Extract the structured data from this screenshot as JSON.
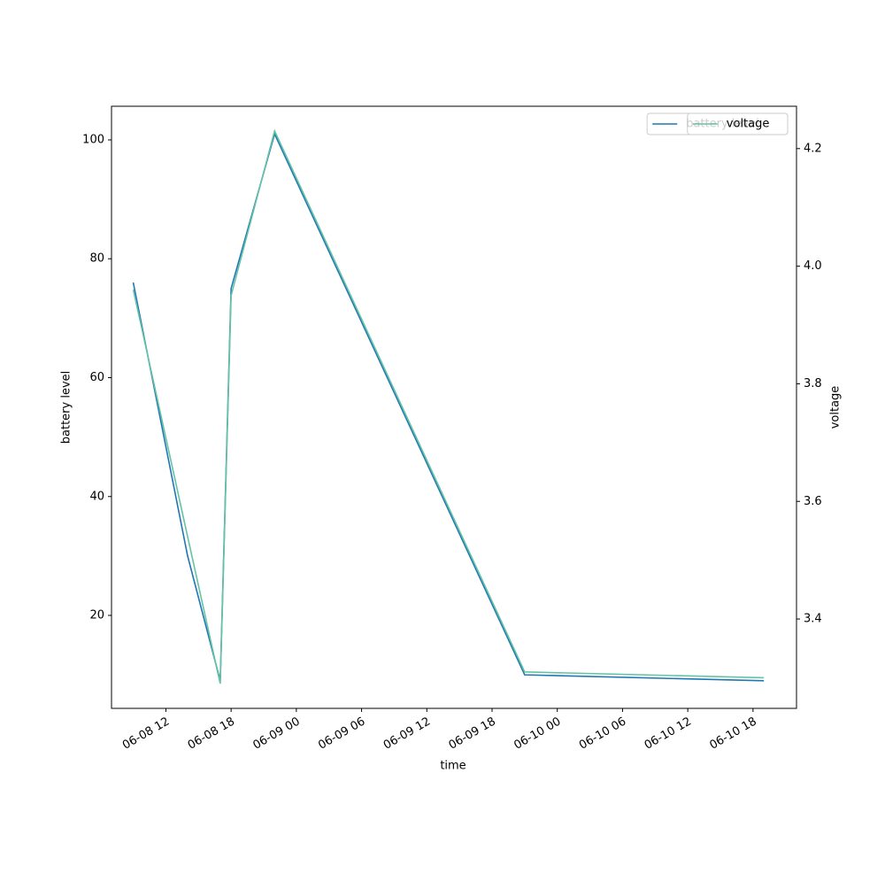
{
  "chart_data": {
    "type": "line",
    "x_label": "time",
    "y_label": "battery level",
    "y2_label": "voltage",
    "x": [
      "06-08 09",
      "06-08 14",
      "06-08 17",
      "06-08 18",
      "06-08 22",
      "06-09 21",
      "06-10 19"
    ],
    "series": [
      {
        "name": "battery level",
        "color": "#1f77b4",
        "values": [
          76,
          30,
          9,
          75,
          101,
          10,
          9
        ]
      },
      {
        "name": "voltage",
        "color": "#66c2a5",
        "axis": "y2",
        "values": [
          3.96,
          3.54,
          3.29,
          3.95,
          4.23,
          3.31,
          3.3
        ]
      }
    ],
    "xlim": [
      "06-08 07",
      "06-10 22"
    ],
    "xticks": [
      "06-08 12",
      "06-08 18",
      "06-09 00",
      "06-09 06",
      "06-09 12",
      "06-09 18",
      "06-10 00",
      "06-10 06",
      "06-10 12",
      "06-10 18"
    ],
    "ylim": [
      4.36,
      105.66
    ],
    "yticks": [
      20,
      40,
      60,
      80,
      100
    ],
    "y2lim": [
      3.248,
      4.272
    ],
    "y2ticks": [
      {
        "value": 3.4,
        "label": "3.4"
      },
      {
        "value": 3.6,
        "label": "3.6"
      },
      {
        "value": 3.8,
        "label": "3.8"
      },
      {
        "value": 4.0,
        "label": "4.0"
      },
      {
        "value": 4.2,
        "label": "4.2"
      }
    ],
    "legend": "upper right",
    "grid": false
  }
}
